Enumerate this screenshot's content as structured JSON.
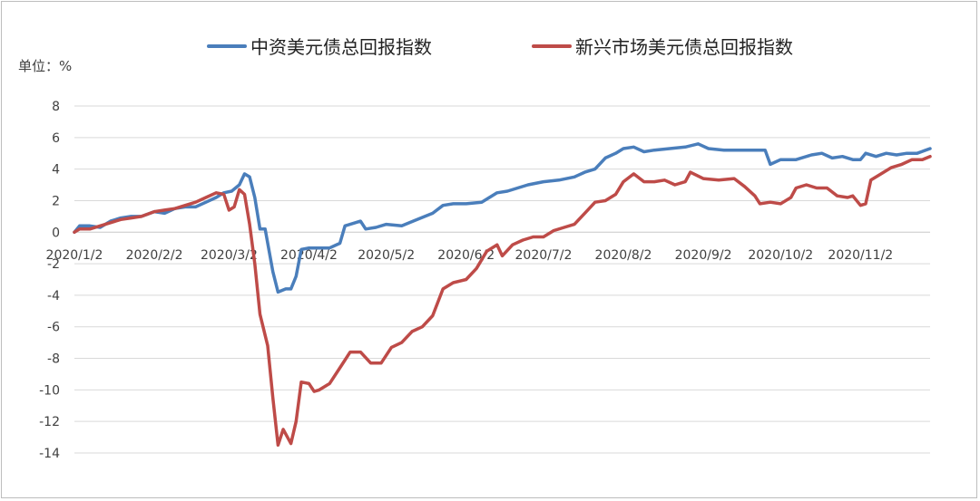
{
  "chart_data": {
    "type": "line",
    "unit_label": "单位：%",
    "ylim": [
      -14,
      8
    ],
    "y_ticks": [
      -14,
      -12,
      -10,
      -8,
      -6,
      -4,
      -2,
      0,
      2,
      4,
      6,
      8
    ],
    "x_ticks": [
      "2020/1/2",
      "2020/2/2",
      "2020/3/2",
      "2020/4/2",
      "2020/5/2",
      "2020/6/2",
      "2020/7/2",
      "2020/8/2",
      "2020/9/2",
      "2020/10/2",
      "2020/11/2"
    ],
    "grid": true,
    "legend_position": "top",
    "colors": {
      "china": "#4a7ebb",
      "em": "#be4b48"
    },
    "series": [
      {
        "name": "中资美元债总回报指数",
        "points": [
          [
            "2020/1/2",
            0.0
          ],
          [
            "2020/1/4",
            0.4
          ],
          [
            "2020/1/8",
            0.4
          ],
          [
            "2020/1/12",
            0.3
          ],
          [
            "2020/1/16",
            0.7
          ],
          [
            "2020/1/20",
            0.9
          ],
          [
            "2020/1/24",
            1.0
          ],
          [
            "2020/1/28",
            1.0
          ],
          [
            "2020/2/2",
            1.3
          ],
          [
            "2020/2/6",
            1.2
          ],
          [
            "2020/2/10",
            1.5
          ],
          [
            "2020/2/14",
            1.6
          ],
          [
            "2020/2/18",
            1.6
          ],
          [
            "2020/2/22",
            1.9
          ],
          [
            "2020/2/26",
            2.2
          ],
          [
            "2020/2/29",
            2.5
          ],
          [
            "2020/3/3",
            2.6
          ],
          [
            "2020/3/6",
            3.0
          ],
          [
            "2020/3/8",
            3.7
          ],
          [
            "2020/3/10",
            3.5
          ],
          [
            "2020/3/12",
            2.2
          ],
          [
            "2020/3/14",
            0.2
          ],
          [
            "2020/3/16",
            0.2
          ],
          [
            "2020/3/19",
            -2.5
          ],
          [
            "2020/3/21",
            -3.8
          ],
          [
            "2020/3/24",
            -3.6
          ],
          [
            "2020/3/26",
            -3.6
          ],
          [
            "2020/3/28",
            -2.8
          ],
          [
            "2020/3/30",
            -1.1
          ],
          [
            "2020/4/2",
            -1.0
          ],
          [
            "2020/4/6",
            -1.0
          ],
          [
            "2020/4/10",
            -1.0
          ],
          [
            "2020/4/14",
            -0.7
          ],
          [
            "2020/4/16",
            0.4
          ],
          [
            "2020/4/22",
            0.7
          ],
          [
            "2020/4/24",
            0.2
          ],
          [
            "2020/4/28",
            0.3
          ],
          [
            "2020/5/2",
            0.5
          ],
          [
            "2020/5/8",
            0.4
          ],
          [
            "2020/5/14",
            0.8
          ],
          [
            "2020/5/20",
            1.2
          ],
          [
            "2020/5/24",
            1.7
          ],
          [
            "2020/5/28",
            1.8
          ],
          [
            "2020/6/2",
            1.8
          ],
          [
            "2020/6/8",
            1.9
          ],
          [
            "2020/6/14",
            2.5
          ],
          [
            "2020/6/18",
            2.6
          ],
          [
            "2020/6/22",
            2.8
          ],
          [
            "2020/6/26",
            3.0
          ],
          [
            "2020/7/2",
            3.2
          ],
          [
            "2020/7/8",
            3.3
          ],
          [
            "2020/7/14",
            3.5
          ],
          [
            "2020/7/18",
            3.8
          ],
          [
            "2020/7/22",
            4.0
          ],
          [
            "2020/7/26",
            4.7
          ],
          [
            "2020/7/30",
            5.0
          ],
          [
            "2020/8/2",
            5.3
          ],
          [
            "2020/8/6",
            5.4
          ],
          [
            "2020/8/10",
            5.1
          ],
          [
            "2020/8/14",
            5.2
          ],
          [
            "2020/8/20",
            5.3
          ],
          [
            "2020/8/26",
            5.4
          ],
          [
            "2020/8/31",
            5.6
          ],
          [
            "2020/9/4",
            5.3
          ],
          [
            "2020/9/10",
            5.2
          ],
          [
            "2020/9/16",
            5.2
          ],
          [
            "2020/9/22",
            5.2
          ],
          [
            "2020/9/26",
            5.2
          ],
          [
            "2020/9/28",
            4.3
          ],
          [
            "2020/10/2",
            4.6
          ],
          [
            "2020/10/8",
            4.6
          ],
          [
            "2020/10/14",
            4.9
          ],
          [
            "2020/10/18",
            5.0
          ],
          [
            "2020/10/22",
            4.7
          ],
          [
            "2020/10/26",
            4.8
          ],
          [
            "2020/10/30",
            4.6
          ],
          [
            "2020/11/2",
            4.6
          ],
          [
            "2020/11/4",
            5.0
          ],
          [
            "2020/11/8",
            4.8
          ],
          [
            "2020/11/12",
            5.0
          ],
          [
            "2020/11/16",
            4.9
          ],
          [
            "2020/11/20",
            5.0
          ],
          [
            "2020/11/24",
            5.0
          ],
          [
            "2020/11/29",
            5.3
          ]
        ]
      },
      {
        "name": "新兴市场美元债总回报指数",
        "points": [
          [
            "2020/1/2",
            0.0
          ],
          [
            "2020/1/4",
            0.2
          ],
          [
            "2020/1/8",
            0.2
          ],
          [
            "2020/1/12",
            0.4
          ],
          [
            "2020/1/16",
            0.6
          ],
          [
            "2020/1/20",
            0.8
          ],
          [
            "2020/1/24",
            0.9
          ],
          [
            "2020/1/28",
            1.0
          ],
          [
            "2020/2/2",
            1.3
          ],
          [
            "2020/2/6",
            1.4
          ],
          [
            "2020/2/10",
            1.5
          ],
          [
            "2020/2/14",
            1.7
          ],
          [
            "2020/2/18",
            1.9
          ],
          [
            "2020/2/22",
            2.2
          ],
          [
            "2020/2/26",
            2.5
          ],
          [
            "2020/2/29",
            2.4
          ],
          [
            "2020/3/2",
            1.4
          ],
          [
            "2020/3/4",
            1.6
          ],
          [
            "2020/3/6",
            2.7
          ],
          [
            "2020/3/8",
            2.4
          ],
          [
            "2020/3/10",
            0.5
          ],
          [
            "2020/3/12",
            -2.0
          ],
          [
            "2020/3/14",
            -5.2
          ],
          [
            "2020/3/17",
            -7.2
          ],
          [
            "2020/3/19",
            -10.5
          ],
          [
            "2020/3/21",
            -13.5
          ],
          [
            "2020/3/23",
            -12.5
          ],
          [
            "2020/3/26",
            -13.4
          ],
          [
            "2020/3/28",
            -12.0
          ],
          [
            "2020/3/30",
            -9.5
          ],
          [
            "2020/4/2",
            -9.6
          ],
          [
            "2020/4/4",
            -10.1
          ],
          [
            "2020/4/6",
            -10.0
          ],
          [
            "2020/4/10",
            -9.6
          ],
          [
            "2020/4/14",
            -8.6
          ],
          [
            "2020/4/18",
            -7.6
          ],
          [
            "2020/4/22",
            -7.6
          ],
          [
            "2020/4/26",
            -8.3
          ],
          [
            "2020/4/30",
            -8.3
          ],
          [
            "2020/5/4",
            -7.3
          ],
          [
            "2020/5/8",
            -7.0
          ],
          [
            "2020/5/12",
            -6.3
          ],
          [
            "2020/5/16",
            -6.0
          ],
          [
            "2020/5/20",
            -5.3
          ],
          [
            "2020/5/24",
            -3.6
          ],
          [
            "2020/5/28",
            -3.2
          ],
          [
            "2020/6/2",
            -3.0
          ],
          [
            "2020/6/6",
            -2.3
          ],
          [
            "2020/6/10",
            -1.2
          ],
          [
            "2020/6/14",
            -0.8
          ],
          [
            "2020/6/16",
            -1.5
          ],
          [
            "2020/6/20",
            -0.8
          ],
          [
            "2020/6/24",
            -0.5
          ],
          [
            "2020/6/28",
            -0.3
          ],
          [
            "2020/7/2",
            -0.3
          ],
          [
            "2020/7/6",
            0.1
          ],
          [
            "2020/7/10",
            0.3
          ],
          [
            "2020/7/14",
            0.5
          ],
          [
            "2020/7/18",
            1.2
          ],
          [
            "2020/7/22",
            1.9
          ],
          [
            "2020/7/26",
            2.0
          ],
          [
            "2020/7/30",
            2.4
          ],
          [
            "2020/8/2",
            3.2
          ],
          [
            "2020/8/6",
            3.7
          ],
          [
            "2020/8/10",
            3.2
          ],
          [
            "2020/8/14",
            3.2
          ],
          [
            "2020/8/18",
            3.3
          ],
          [
            "2020/8/22",
            3.0
          ],
          [
            "2020/8/26",
            3.2
          ],
          [
            "2020/8/28",
            3.8
          ],
          [
            "2020/9/2",
            3.4
          ],
          [
            "2020/9/8",
            3.3
          ],
          [
            "2020/9/14",
            3.4
          ],
          [
            "2020/9/18",
            2.9
          ],
          [
            "2020/9/22",
            2.3
          ],
          [
            "2020/9/24",
            1.8
          ],
          [
            "2020/9/28",
            1.9
          ],
          [
            "2020/10/2",
            1.8
          ],
          [
            "2020/10/6",
            2.2
          ],
          [
            "2020/10/8",
            2.8
          ],
          [
            "2020/10/12",
            3.0
          ],
          [
            "2020/10/16",
            2.8
          ],
          [
            "2020/10/20",
            2.8
          ],
          [
            "2020/10/24",
            2.3
          ],
          [
            "2020/10/28",
            2.2
          ],
          [
            "2020/10/30",
            2.3
          ],
          [
            "2020/11/2",
            1.7
          ],
          [
            "2020/11/4",
            1.8
          ],
          [
            "2020/11/6",
            3.3
          ],
          [
            "2020/11/10",
            3.7
          ],
          [
            "2020/11/14",
            4.1
          ],
          [
            "2020/11/18",
            4.3
          ],
          [
            "2020/11/22",
            4.6
          ],
          [
            "2020/11/26",
            4.6
          ],
          [
            "2020/11/29",
            4.8
          ]
        ]
      }
    ]
  }
}
